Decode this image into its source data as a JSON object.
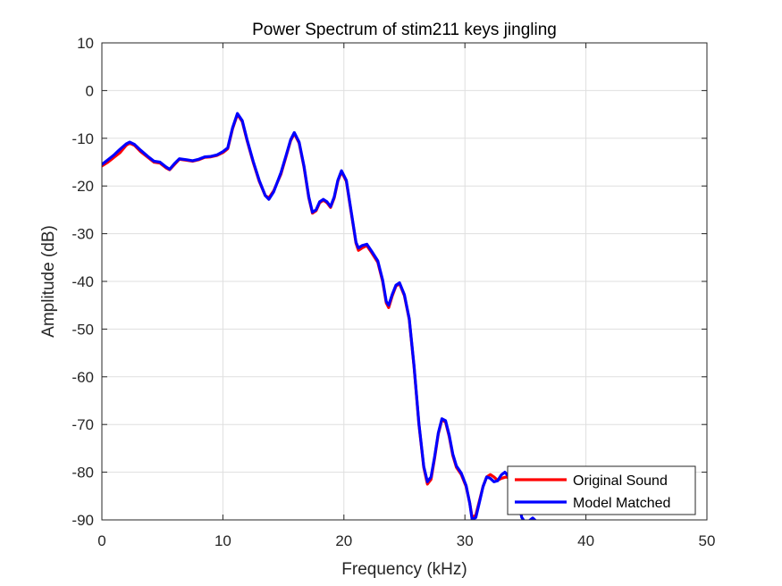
{
  "chart_data": {
    "type": "line",
    "title": "Power Spectrum of stim211 keys jingling",
    "xlabel": "Frequency (kHz)",
    "ylabel": "Amplitude (dB)",
    "xlim": [
      0,
      50
    ],
    "ylim": [
      -90,
      10
    ],
    "xticks": [
      0,
      10,
      20,
      30,
      40,
      50
    ],
    "yticks": [
      10,
      0,
      -10,
      -20,
      -30,
      -40,
      -50,
      -60,
      -70,
      -80,
      -90
    ],
    "grid": true,
    "legend_position": "bottom-right",
    "series": [
      {
        "name": "Original Sound",
        "color": "#ff0000",
        "points": [
          [
            0,
            -15.8
          ],
          [
            0.5,
            -15
          ],
          [
            1,
            -14
          ],
          [
            1.5,
            -13
          ],
          [
            2,
            -11.5
          ],
          [
            2.3,
            -11
          ],
          [
            2.7,
            -11.5
          ],
          [
            3.2,
            -12.8
          ],
          [
            3.8,
            -14
          ],
          [
            4.3,
            -15
          ],
          [
            4.8,
            -15.2
          ],
          [
            5.3,
            -16.2
          ],
          [
            5.6,
            -16.6
          ],
          [
            6,
            -15.5
          ],
          [
            6.4,
            -14.4
          ],
          [
            7,
            -14.6
          ],
          [
            7.5,
            -14.8
          ],
          [
            8,
            -14.5
          ],
          [
            8.5,
            -14
          ],
          [
            9,
            -13.9
          ],
          [
            9.5,
            -13.6
          ],
          [
            10,
            -13
          ],
          [
            10.4,
            -12.2
          ],
          [
            10.8,
            -8
          ],
          [
            11.2,
            -5
          ],
          [
            11.6,
            -6.5
          ],
          [
            12,
            -10.5
          ],
          [
            12.5,
            -15
          ],
          [
            13,
            -19
          ],
          [
            13.5,
            -22
          ],
          [
            13.8,
            -22.5
          ],
          [
            14.2,
            -21
          ],
          [
            14.8,
            -17.5
          ],
          [
            15.2,
            -14
          ],
          [
            15.6,
            -10.5
          ],
          [
            15.9,
            -9
          ],
          [
            16.3,
            -11
          ],
          [
            16.7,
            -16
          ],
          [
            17.1,
            -22.5
          ],
          [
            17.4,
            -25.7
          ],
          [
            17.7,
            -25.2
          ],
          [
            18,
            -23.5
          ],
          [
            18.3,
            -23
          ],
          [
            18.6,
            -23.5
          ],
          [
            18.9,
            -24.5
          ],
          [
            19.2,
            -22.5
          ],
          [
            19.5,
            -19
          ],
          [
            19.8,
            -17
          ],
          [
            20.2,
            -19
          ],
          [
            20.6,
            -25.5
          ],
          [
            21,
            -32
          ],
          [
            21.2,
            -33.5
          ],
          [
            21.5,
            -33
          ],
          [
            21.9,
            -32.5
          ],
          [
            22.3,
            -34
          ],
          [
            22.8,
            -36
          ],
          [
            23.2,
            -40
          ],
          [
            23.5,
            -44.5
          ],
          [
            23.7,
            -45.5
          ],
          [
            24,
            -43
          ],
          [
            24.3,
            -41
          ],
          [
            24.6,
            -40.5
          ],
          [
            25,
            -43
          ],
          [
            25.4,
            -48
          ],
          [
            25.8,
            -58
          ],
          [
            26.2,
            -70
          ],
          [
            26.6,
            -79
          ],
          [
            26.9,
            -82.5
          ],
          [
            27.2,
            -81.5
          ],
          [
            27.5,
            -77
          ],
          [
            27.8,
            -72
          ],
          [
            28.1,
            -69
          ],
          [
            28.4,
            -69.5
          ],
          [
            28.7,
            -72.5
          ],
          [
            29,
            -76.5
          ],
          [
            29.3,
            -79
          ],
          [
            29.7,
            -80.5
          ],
          [
            30.1,
            -83
          ],
          [
            30.4,
            -86.5
          ],
          [
            30.6,
            -89.5
          ],
          [
            30.9,
            -89
          ],
          [
            31.2,
            -86
          ],
          [
            31.5,
            -83
          ],
          [
            31.8,
            -81
          ],
          [
            32.1,
            -80.5
          ],
          [
            32.4,
            -81
          ],
          [
            32.7,
            -81.7
          ],
          [
            33,
            -81.3
          ],
          [
            33.4,
            -81
          ],
          [
            33.7,
            -81.3
          ],
          [
            34,
            -81.8
          ]
        ]
      },
      {
        "name": "Model Matched",
        "color": "#0000ff",
        "points": [
          [
            0,
            -15.5
          ],
          [
            0.5,
            -14.5
          ],
          [
            1,
            -13.5
          ],
          [
            1.5,
            -12.3
          ],
          [
            2,
            -11.2
          ],
          [
            2.3,
            -10.8
          ],
          [
            2.7,
            -11.3
          ],
          [
            3.2,
            -12.5
          ],
          [
            3.8,
            -13.8
          ],
          [
            4.3,
            -14.8
          ],
          [
            4.8,
            -15
          ],
          [
            5.3,
            -16
          ],
          [
            5.6,
            -16.5
          ],
          [
            6,
            -15.3
          ],
          [
            6.4,
            -14.3
          ],
          [
            7,
            -14.5
          ],
          [
            7.5,
            -14.7
          ],
          [
            8,
            -14.4
          ],
          [
            8.5,
            -13.9
          ],
          [
            9,
            -13.8
          ],
          [
            9.5,
            -13.5
          ],
          [
            10,
            -12.8
          ],
          [
            10.4,
            -12
          ],
          [
            10.8,
            -7.8
          ],
          [
            11.2,
            -4.8
          ],
          [
            11.6,
            -6.3
          ],
          [
            12,
            -10.3
          ],
          [
            12.5,
            -14.8
          ],
          [
            13,
            -18.8
          ],
          [
            13.5,
            -22
          ],
          [
            13.8,
            -22.8
          ],
          [
            14.2,
            -21.2
          ],
          [
            14.8,
            -17.2
          ],
          [
            15.2,
            -13.8
          ],
          [
            15.6,
            -10.3
          ],
          [
            15.9,
            -8.8
          ],
          [
            16.3,
            -10.8
          ],
          [
            16.7,
            -15.8
          ],
          [
            17.1,
            -22.3
          ],
          [
            17.4,
            -25.5
          ],
          [
            17.7,
            -25
          ],
          [
            18,
            -23.3
          ],
          [
            18.3,
            -22.8
          ],
          [
            18.6,
            -23.3
          ],
          [
            18.9,
            -24.3
          ],
          [
            19.2,
            -22.3
          ],
          [
            19.5,
            -18.8
          ],
          [
            19.8,
            -16.8
          ],
          [
            20.2,
            -18.8
          ],
          [
            20.6,
            -25.3
          ],
          [
            21,
            -31.8
          ],
          [
            21.2,
            -33
          ],
          [
            21.5,
            -32.5
          ],
          [
            21.9,
            -32.2
          ],
          [
            22.3,
            -33.7
          ],
          [
            22.8,
            -35.7
          ],
          [
            23.2,
            -39.7
          ],
          [
            23.5,
            -44.2
          ],
          [
            23.7,
            -45
          ],
          [
            24,
            -42.7
          ],
          [
            24.3,
            -40.8
          ],
          [
            24.6,
            -40.3
          ],
          [
            25,
            -42.8
          ],
          [
            25.4,
            -47.8
          ],
          [
            25.8,
            -57.8
          ],
          [
            26.2,
            -69.8
          ],
          [
            26.6,
            -78.8
          ],
          [
            26.9,
            -82
          ],
          [
            27.2,
            -81
          ],
          [
            27.5,
            -76.7
          ],
          [
            27.8,
            -71.8
          ],
          [
            28.1,
            -68.8
          ],
          [
            28.4,
            -69.2
          ],
          [
            28.7,
            -72.2
          ],
          [
            29,
            -76.2
          ],
          [
            29.3,
            -78.7
          ],
          [
            29.7,
            -80.2
          ],
          [
            30.1,
            -82.8
          ],
          [
            30.4,
            -86.5
          ],
          [
            30.6,
            -90
          ],
          [
            30.9,
            -89.5
          ],
          [
            31.2,
            -86.3
          ],
          [
            31.5,
            -83
          ],
          [
            31.8,
            -81
          ],
          [
            32.1,
            -81.3
          ],
          [
            32.4,
            -82
          ],
          [
            32.7,
            -81.8
          ],
          [
            33,
            -80.6
          ],
          [
            33.3,
            -80
          ],
          [
            33.6,
            -80.8
          ],
          [
            34,
            -82.5
          ],
          [
            34.4,
            -86
          ],
          [
            34.7,
            -89.5
          ],
          [
            35,
            -90.6
          ],
          [
            35.3,
            -90.2
          ],
          [
            35.6,
            -89.6
          ],
          [
            35.9,
            -90.3
          ]
        ]
      }
    ]
  }
}
